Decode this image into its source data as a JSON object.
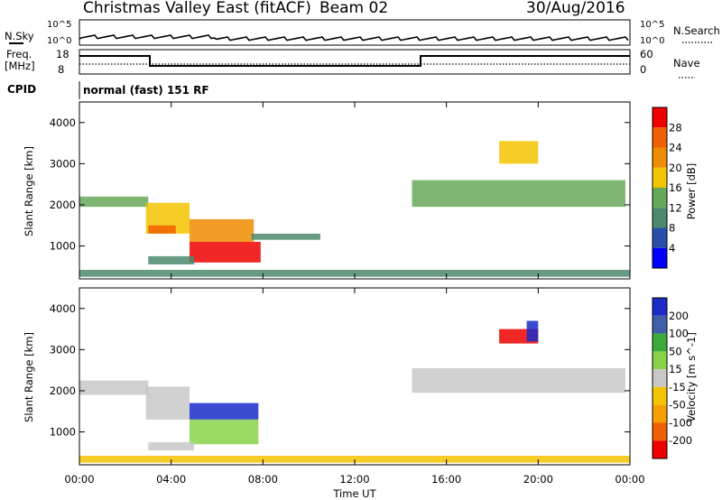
{
  "header": {
    "title": "Christmas Valley East (fitACF)",
    "beam": "Beam 02",
    "date": "30/Aug/2016"
  },
  "top_panels": {
    "nsky_label": "N.Sky",
    "nsearch_label": "N.Search",
    "nsky_ticks": [
      "10^5",
      "10^0"
    ],
    "nsearch_ticks": [
      "10^5",
      "10^0"
    ],
    "freq_label_1": "Freq.",
    "freq_label_2": "[MHz]",
    "freq_ticks": [
      "18",
      "8"
    ],
    "nave_label": "Nave",
    "nave_ticks": [
      "60",
      "0"
    ],
    "cpid_label": "CPID",
    "cpid_value": "normal (fast) 151 RF"
  },
  "colors": {
    "power_scale": [
      "#0000ff",
      "#2a4faa",
      "#4c8a6c",
      "#66a85a",
      "#f5c400",
      "#f08c00",
      "#f06000",
      "#ee0000"
    ],
    "velocity_scale": [
      "#1a2bc8",
      "#3f5fa8",
      "#3aaa3a",
      "#8ad24a",
      "#c8c8c8",
      "#f5c400",
      "#f5a000",
      "#f06000",
      "#ee0000"
    ]
  },
  "chart_data": [
    {
      "type": "heatmap",
      "panel": "power",
      "ylabel": "Slant Range [km]",
      "yticks": [
        "1000",
        "2000",
        "3000",
        "4000"
      ],
      "ylim": [
        200,
        4500
      ],
      "xlabel": "Time UT",
      "xticks": [
        "00:00",
        "04:00",
        "08:00",
        "12:00",
        "16:00",
        "20:00",
        "00:00"
      ],
      "xlim_hours": [
        0,
        24
      ],
      "colorbar_label": "Power [dB]",
      "colorbar_ticks": [
        "4",
        "8",
        "12",
        "16",
        "20",
        "24",
        "28"
      ],
      "regions": [
        {
          "t0": 0.0,
          "t1": 3.0,
          "r0": 1950,
          "r1": 2200,
          "level": 3
        },
        {
          "t0": 2.9,
          "t1": 4.8,
          "r0": 1300,
          "r1": 2050,
          "level": 4
        },
        {
          "t0": 3.0,
          "t1": 4.2,
          "r0": 1300,
          "r1": 1500,
          "level": 6
        },
        {
          "t0": 4.8,
          "t1": 7.6,
          "r0": 1100,
          "r1": 1650,
          "level": 5
        },
        {
          "t0": 4.8,
          "t1": 7.9,
          "r0": 600,
          "r1": 1100,
          "level": 7
        },
        {
          "t0": 3.0,
          "t1": 5.0,
          "r0": 550,
          "r1": 750,
          "level": 2
        },
        {
          "t0": 7.5,
          "t1": 10.5,
          "r0": 1150,
          "r1": 1300,
          "level": 2
        },
        {
          "t0": 14.5,
          "t1": 23.8,
          "r0": 1950,
          "r1": 2600,
          "level": 3
        },
        {
          "t0": 18.3,
          "t1": 20.0,
          "r0": 3000,
          "r1": 3550,
          "level": 4
        },
        {
          "t0": 0.0,
          "t1": 24.0,
          "r0": 250,
          "r1": 420,
          "level": 2
        }
      ]
    },
    {
      "type": "heatmap",
      "panel": "velocity",
      "ylabel": "Slant Range [km]",
      "yticks": [
        "1000",
        "2000",
        "3000",
        "4000"
      ],
      "ylim": [
        200,
        4500
      ],
      "xlabel": "Time UT",
      "xticks": [
        "00:00",
        "04:00",
        "08:00",
        "12:00",
        "16:00",
        "20:00",
        "00:00"
      ],
      "xlim_hours": [
        0,
        24
      ],
      "colorbar_label": "Velocity [m s^-1]",
      "colorbar_ticks": [
        "200",
        "100",
        "50",
        "15",
        "-15",
        "-50",
        "-100",
        "-200"
      ],
      "regions": [
        {
          "t0": 0.0,
          "t1": 3.0,
          "r0": 1900,
          "r1": 2250,
          "level": 4
        },
        {
          "t0": 2.9,
          "t1": 4.8,
          "r0": 1300,
          "r1": 2100,
          "level": 4
        },
        {
          "t0": 4.8,
          "t1": 7.8,
          "r0": 1300,
          "r1": 1700,
          "level": 0
        },
        {
          "t0": 4.8,
          "t1": 7.8,
          "r0": 700,
          "r1": 1300,
          "level": 3
        },
        {
          "t0": 3.0,
          "t1": 5.0,
          "r0": 550,
          "r1": 750,
          "level": 4
        },
        {
          "t0": 14.5,
          "t1": 23.8,
          "r0": 1950,
          "r1": 2550,
          "level": 4
        },
        {
          "t0": 18.3,
          "t1": 20.0,
          "r0": 3150,
          "r1": 3500,
          "level": 8
        },
        {
          "t0": 19.5,
          "t1": 20.0,
          "r0": 3200,
          "r1": 3700,
          "level": 0
        },
        {
          "t0": 0.0,
          "t1": 24.0,
          "r0": 250,
          "r1": 420,
          "level": 5
        }
      ]
    }
  ]
}
